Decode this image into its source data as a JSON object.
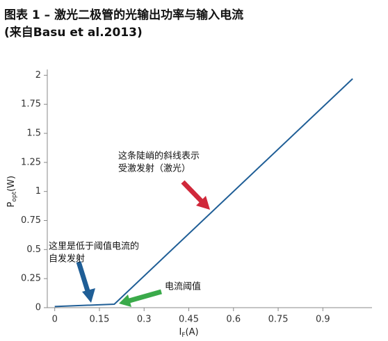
{
  "chart_data": {
    "type": "line",
    "title": "图表 1 – 激光二极管的光输出功率与输入电流",
    "subtitle": "(来自Basu et al.2013)",
    "ylabel": {
      "main": "P",
      "sub": "opt",
      "unit": "(W)"
    },
    "xlabel": {
      "main": "I",
      "sub": "F",
      "unit": "(A)"
    },
    "x": [
      0,
      0.2,
      1.0
    ],
    "series": [
      {
        "name": "Popt",
        "color": "#1f5e96",
        "values": [
          0.01,
          0.03,
          1.97
        ]
      }
    ],
    "xlim": [
      -0.025,
      1.065
    ],
    "ylim": [
      0,
      2.05
    ],
    "xticks": [
      0,
      0.15,
      0.3,
      0.45,
      0.6,
      0.75,
      0.9
    ],
    "yticks": [
      0,
      0.25,
      0.5,
      0.75,
      1,
      1.25,
      1.5,
      1.75,
      2
    ],
    "grid": false,
    "annotations": [
      {
        "lines": [
          "这条陡峭的斜线表示",
          "受激发射（激光）"
        ]
      },
      {
        "lines": [
          "这里是低于阈值电流的",
          "自发发射"
        ]
      },
      {
        "lines": [
          "电流阈值"
        ]
      }
    ]
  }
}
